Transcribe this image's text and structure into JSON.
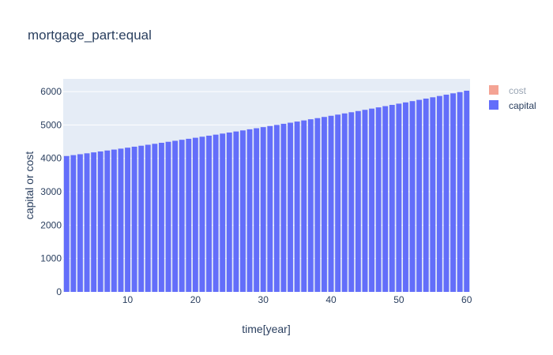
{
  "chart_data": {
    "type": "bar",
    "title": "mortgage_part:equal",
    "xlabel": "time[year]",
    "ylabel": "capital or cost",
    "xlim": [
      0.5,
      60.5
    ],
    "ylim": [
      0,
      6380
    ],
    "xticks": [
      10,
      20,
      30,
      40,
      50,
      60
    ],
    "yticks": [
      0,
      1000,
      2000,
      3000,
      4000,
      5000,
      6000
    ],
    "legend_position": "top-right",
    "series": [
      {
        "name": "cost",
        "color": "#f4a394",
        "visible": false,
        "values": []
      },
      {
        "name": "capital",
        "color": "#636efa",
        "visible": true,
        "x": [
          1,
          2,
          3,
          4,
          5,
          6,
          7,
          8,
          9,
          10,
          11,
          12,
          13,
          14,
          15,
          16,
          17,
          18,
          19,
          20,
          21,
          22,
          23,
          24,
          25,
          26,
          27,
          28,
          29,
          30,
          31,
          32,
          33,
          34,
          35,
          36,
          37,
          38,
          39,
          40,
          41,
          42,
          43,
          44,
          45,
          46,
          47,
          48,
          49,
          50,
          51,
          52,
          53,
          54,
          55,
          56,
          57,
          58,
          59,
          60
        ],
        "values": [
          4070,
          4097,
          4124,
          4151,
          4179,
          4207,
          4235,
          4263,
          4291,
          4320,
          4349,
          4378,
          4407,
          4436,
          4466,
          4496,
          4526,
          4556,
          4586,
          4617,
          4648,
          4679,
          4710,
          4742,
          4773,
          4805,
          4837,
          4870,
          4902,
          4935,
          4968,
          5001,
          5035,
          5068,
          5102,
          5136,
          5171,
          5205,
          5240,
          5275,
          5310,
          5346,
          5381,
          5417,
          5453,
          5490,
          5527,
          5564,
          5601,
          5638,
          5676,
          5714,
          5752,
          5790,
          5829,
          5868,
          5907,
          5947,
          5986,
          6026
        ]
      }
    ]
  }
}
